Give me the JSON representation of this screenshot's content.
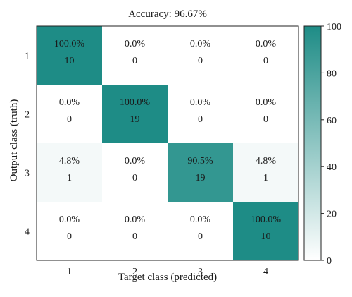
{
  "chart_data": {
    "type": "heatmap",
    "title": "Accuracy: 96.67%",
    "xlabel": "Target class (predicted)",
    "ylabel": "Output class (truth)",
    "x_categories": [
      "1",
      "2",
      "3",
      "4"
    ],
    "y_categories": [
      "1",
      "2",
      "3",
      "4"
    ],
    "cells": [
      [
        {
          "pct": "100.0%",
          "count": "10",
          "value": 100.0
        },
        {
          "pct": "0.0%",
          "count": "0",
          "value": 0
        },
        {
          "pct": "0.0%",
          "count": "0",
          "value": 0
        },
        {
          "pct": "0.0%",
          "count": "0",
          "value": 0
        }
      ],
      [
        {
          "pct": "0.0%",
          "count": "0",
          "value": 0
        },
        {
          "pct": "100.0%",
          "count": "19",
          "value": 100.0
        },
        {
          "pct": "0.0%",
          "count": "0",
          "value": 0
        },
        {
          "pct": "0.0%",
          "count": "0",
          "value": 0
        }
      ],
      [
        {
          "pct": "4.8%",
          "count": "1",
          "value": 4.8
        },
        {
          "pct": "0.0%",
          "count": "0",
          "value": 0
        },
        {
          "pct": "90.5%",
          "count": "19",
          "value": 90.5
        },
        {
          "pct": "4.8%",
          "count": "1",
          "value": 4.8
        }
      ],
      [
        {
          "pct": "0.0%",
          "count": "0",
          "value": 0
        },
        {
          "pct": "0.0%",
          "count": "0",
          "value": 0
        },
        {
          "pct": "0.0%",
          "count": "0",
          "value": 0
        },
        {
          "pct": "100.0%",
          "count": "10",
          "value": 100.0
        }
      ]
    ],
    "colorbar": {
      "range": [
        0,
        100
      ],
      "ticks": [
        "0",
        "20",
        "40",
        "60",
        "80",
        "100"
      ],
      "color_low": "#ffffff",
      "color_high": "#1e8c86"
    },
    "grid": false,
    "legend": "colorbar-right"
  }
}
